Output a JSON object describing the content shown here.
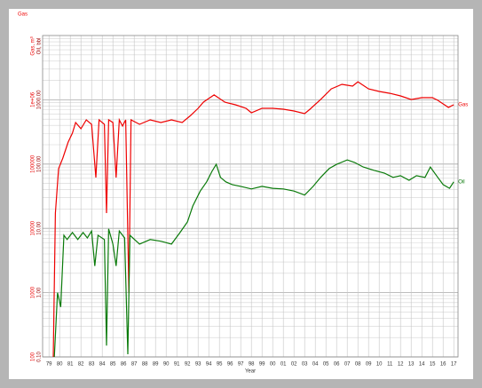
{
  "chart_data": {
    "type": "line",
    "title": "Gas",
    "ylabel": "Gas, m³",
    "y2label": "Oil, bbl",
    "xlabel": "Year",
    "log_scale": true,
    "grid": true,
    "xlim": [
      1978.4,
      2017.4
    ],
    "xticks": [
      {
        "value": 1979,
        "label": "79"
      },
      {
        "value": 1980,
        "label": "80"
      },
      {
        "value": 1981,
        "label": "81"
      },
      {
        "value": 1982,
        "label": "82"
      },
      {
        "value": 1983,
        "label": "83"
      },
      {
        "value": 1984,
        "label": "84"
      },
      {
        "value": 1985,
        "label": "85"
      },
      {
        "value": 1986,
        "label": "86"
      },
      {
        "value": 1987,
        "label": "87"
      },
      {
        "value": 1988,
        "label": "88"
      },
      {
        "value": 1989,
        "label": "89"
      },
      {
        "value": 1990,
        "label": "90"
      },
      {
        "value": 1991,
        "label": "91"
      },
      {
        "value": 1992,
        "label": "92"
      },
      {
        "value": 1993,
        "label": "93"
      },
      {
        "value": 1994,
        "label": "94"
      },
      {
        "value": 1995,
        "label": "95"
      },
      {
        "value": 1996,
        "label": "96"
      },
      {
        "value": 1997,
        "label": "97"
      },
      {
        "value": 1998,
        "label": "98"
      },
      {
        "value": 1999,
        "label": "99"
      },
      {
        "value": 2000,
        "label": "00"
      },
      {
        "value": 2001,
        "label": "01"
      },
      {
        "value": 2002,
        "label": "02"
      },
      {
        "value": 2003,
        "label": "03"
      },
      {
        "value": 2004,
        "label": "04"
      },
      {
        "value": 2005,
        "label": "05"
      },
      {
        "value": 2006,
        "label": "06"
      },
      {
        "value": 2007,
        "label": "07"
      },
      {
        "value": 2008,
        "label": "08"
      },
      {
        "value": 2009,
        "label": "09"
      },
      {
        "value": 2010,
        "label": "10"
      },
      {
        "value": 2011,
        "label": "11"
      },
      {
        "value": 2012,
        "label": "12"
      },
      {
        "value": 2013,
        "label": "13"
      },
      {
        "value": 2014,
        "label": "14"
      },
      {
        "value": 2015,
        "label": "15"
      },
      {
        "value": 2016,
        "label": "16"
      },
      {
        "value": 2017,
        "label": "17"
      }
    ],
    "ylim": [
      100,
      10000000
    ],
    "yticks": [
      100,
      1000,
      10000,
      100000,
      {
        "value": 1000000,
        "label": "1e+06"
      }
    ],
    "y2lim": [
      0.1,
      10000
    ],
    "y2ticks": [
      {
        "value": 0.1,
        "label": "0.10"
      },
      {
        "value": 1,
        "label": "1.00"
      },
      {
        "value": 10,
        "label": "10.00"
      },
      {
        "value": 100,
        "label": "100.00"
      },
      {
        "value": 1000,
        "label": "1000.00"
      }
    ],
    "series": [
      {
        "name": "Gas",
        "color": "#ee0000",
        "x": [
          1979.4,
          1979.6,
          1979.9,
          1980.3,
          1980.8,
          1981.2,
          1981.5,
          1982,
          1982.5,
          1983,
          1983.4,
          1983.7,
          1984.2,
          1984.4,
          1984.6,
          1985,
          1985.3,
          1985.6,
          1985.9,
          1986.2,
          1986.5,
          1986.7,
          1987.5,
          1988.5,
          1989.5,
          1990.5,
          1991.5,
          1992.3,
          1993,
          1993.5,
          1994.5,
          1995.5,
          1996.5,
          1997.5,
          1998,
          1999,
          2000,
          2001,
          2002,
          2003,
          2003.5,
          2004.5,
          2005.5,
          2006.5,
          2007.5,
          2008,
          2009,
          2010,
          2011,
          2012,
          2013,
          2014,
          2015,
          2015.5,
          2016,
          2016.5,
          2017
        ],
        "values": [
          100,
          17300,
          84700,
          124000,
          220000,
          303000,
          443000,
          355000,
          488000,
          416000,
          61700,
          488000,
          416000,
          17300,
          488000,
          443000,
          61700,
          488000,
          390000,
          488000,
          1000,
          488000,
          416000,
          488000,
          443000,
          488000,
          443000,
          571000,
          737000,
          920000,
          1190000,
          920000,
          837000,
          737000,
          628000,
          737000,
          737000,
          714000,
          670000,
          609000,
          714000,
          1010000,
          1480000,
          1740000,
          1630000,
          1910000,
          1480000,
          1350000,
          1260000,
          1150000,
          1010000,
          1080000,
          1080000,
          980000,
          863000,
          760000,
          837000
        ]
      },
      {
        "name": "Oil",
        "color": "#0a7a0a",
        "axis": "y2",
        "x": [
          1979.5,
          1979.8,
          1980.1,
          1980.4,
          1980.7,
          1981.2,
          1981.7,
          1982.2,
          1982.6,
          1983,
          1983.3,
          1983.6,
          1984.2,
          1984.4,
          1984.6,
          1985,
          1985.3,
          1985.6,
          1986.1,
          1986.4,
          1986.6,
          1987.5,
          1988.5,
          1989.5,
          1990.5,
          1991.3,
          1992,
          1992.5,
          1993.2,
          1993.8,
          1994.3,
          1994.7,
          1995.1,
          1995.6,
          1996.2,
          1997,
          1998,
          1999,
          2000,
          2001,
          2002,
          2003,
          2003.8,
          2004.5,
          2005.3,
          2006,
          2007,
          2007.7,
          2008.5,
          2009.5,
          2010.5,
          2011.3,
          2012,
          2012.8,
          2013.5,
          2014.3,
          2014.8,
          2015.5,
          2016,
          2016.6,
          2017
        ],
        "values": [
          0.1,
          1,
          0.6,
          7.8,
          6.7,
          8.6,
          6.7,
          8.6,
          7.1,
          9.1,
          2.6,
          7.8,
          6.7,
          0.15,
          9.8,
          5.7,
          2.6,
          9.1,
          7.1,
          0.11,
          7.8,
          5.7,
          6.7,
          6.3,
          5.7,
          8.6,
          12.6,
          22.3,
          38,
          53,
          77,
          99,
          62,
          53,
          48,
          45,
          41,
          45,
          42,
          41,
          38,
          33,
          45,
          62,
          85,
          99,
          116,
          106,
          90,
          80,
          72,
          62,
          66,
          56,
          66,
          62,
          90,
          62,
          48,
          42,
          53
        ]
      }
    ]
  }
}
